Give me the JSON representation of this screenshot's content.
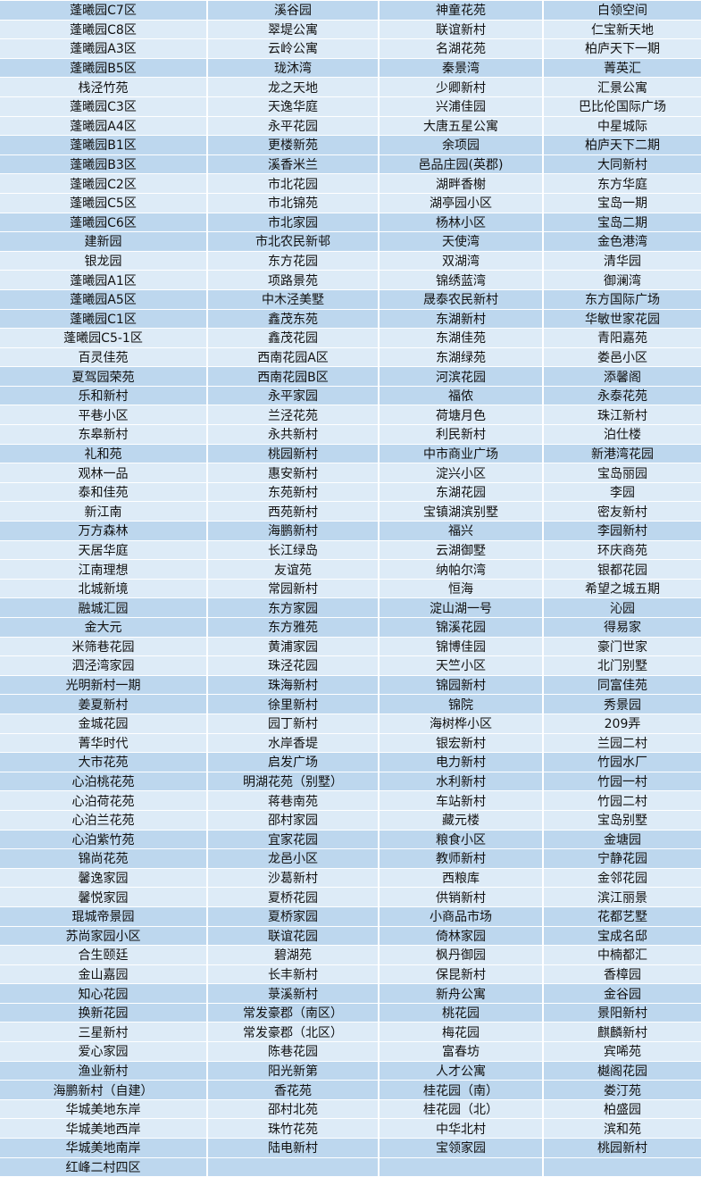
{
  "colors": {
    "dark_row": "#bdd7ee",
    "light_row": "#ddebf7"
  },
  "rows": [
    {
      "shade": "d",
      "cells": [
        "蓬曦园C7区",
        "溪谷园",
        "神童花苑",
        "白领空间"
      ]
    },
    {
      "shade": "l",
      "cells": [
        "蓬曦园C8区",
        "翠堤公寓",
        "联谊新村",
        "仁宝新天地"
      ]
    },
    {
      "shade": "l",
      "cells": [
        "蓬曦园A3区",
        "云岭公寓",
        "名湖花苑",
        "柏庐天下一期"
      ]
    },
    {
      "shade": "d",
      "cells": [
        "蓬曦园B5区",
        "珑沐湾",
        "秦景湾",
        "菁英汇"
      ]
    },
    {
      "shade": "l",
      "cells": [
        "栈泾竹苑",
        "龙之天地",
        "少卿新村",
        "汇景公寓"
      ]
    },
    {
      "shade": "l",
      "cells": [
        "蓬曦园C3区",
        "天逸华庭",
        "兴浦佳园",
        "巴比伦国际广场"
      ]
    },
    {
      "shade": "l",
      "cells": [
        "蓬曦园A4区",
        "永平花园",
        "大唐五星公寓",
        "中星城际"
      ]
    },
    {
      "shade": "d",
      "cells": [
        "蓬曦园B1区",
        "更楼新苑",
        "余项园",
        "柏庐天下二期"
      ]
    },
    {
      "shade": "d",
      "cells": [
        "蓬曦园B3区",
        "溪香米兰",
        "邑品庄园(英郡)",
        "大同新村"
      ]
    },
    {
      "shade": "l",
      "cells": [
        "蓬曦园C2区",
        "市北花园",
        "湖畔香榭",
        "东方华庭"
      ]
    },
    {
      "shade": "l",
      "cells": [
        "蓬曦园C5区",
        "市北锦苑",
        "湖亭园小区",
        "宝岛一期"
      ]
    },
    {
      "shade": "d",
      "cells": [
        "蓬曦园C6区",
        "市北家园",
        "杨林小区",
        "宝岛二期"
      ]
    },
    {
      "shade": "d",
      "cells": [
        "建新园",
        "市北农民新邨",
        "天使湾",
        "金色港湾"
      ]
    },
    {
      "shade": "l",
      "cells": [
        "银龙园",
        "东方花园",
        "双湖湾",
        "清华园"
      ]
    },
    {
      "shade": "l",
      "cells": [
        "蓬曦园A1区",
        "项路景苑",
        "锦绣蓝湾",
        "御澜湾"
      ]
    },
    {
      "shade": "d",
      "cells": [
        "蓬曦园A5区",
        "中木泾美墅",
        "晟泰农民新村",
        "东方国际广场"
      ]
    },
    {
      "shade": "d",
      "cells": [
        "蓬曦园C1区",
        "鑫茂东苑",
        "东湖新村",
        "华敏世家花园"
      ]
    },
    {
      "shade": "l",
      "cells": [
        "蓬曦园C5-1区",
        "鑫茂花园",
        "东湖佳苑",
        "青阳嘉苑"
      ]
    },
    {
      "shade": "l",
      "cells": [
        "百灵佳苑",
        "西南花园A区",
        "东湖绿苑",
        "娄邑小区"
      ]
    },
    {
      "shade": "d",
      "cells": [
        "夏驾园荣苑",
        "西南花园B区",
        "河滨花园",
        "添馨阁"
      ]
    },
    {
      "shade": "d",
      "cells": [
        "乐和新村",
        "永平家园",
        "福侬",
        "永泰花苑"
      ]
    },
    {
      "shade": "l",
      "cells": [
        "平巷小区",
        "兰泾花苑",
        "荷塘月色",
        "珠江新村"
      ]
    },
    {
      "shade": "l",
      "cells": [
        "东皋新村",
        "永共新村",
        "利民新村",
        "泊仕楼"
      ]
    },
    {
      "shade": "d",
      "cells": [
        "礼和苑",
        "桃园新村",
        "中市商业广场",
        "新港湾花园"
      ]
    },
    {
      "shade": "l",
      "cells": [
        "观林一品",
        "惠安新村",
        "淀兴小区",
        "宝岛丽园"
      ]
    },
    {
      "shade": "l",
      "cells": [
        "泰和佳苑",
        "东苑新村",
        "东湖花园",
        "李园"
      ]
    },
    {
      "shade": "l",
      "cells": [
        "新江南",
        "西苑新村",
        "宝镇湖滨别墅",
        "密友新村"
      ]
    },
    {
      "shade": "d",
      "cells": [
        "万方森林",
        "海鹏新村",
        "福兴",
        "李园新村"
      ]
    },
    {
      "shade": "l",
      "cells": [
        "天居华庭",
        "长江绿岛",
        "云湖御墅",
        "环庆商苑"
      ]
    },
    {
      "shade": "l",
      "cells": [
        "江南理想",
        "友谊苑",
        "纳帕尔湾",
        "银都花园"
      ]
    },
    {
      "shade": "l",
      "cells": [
        "北城新境",
        "常园新村",
        "恒海",
        "希望之城五期"
      ]
    },
    {
      "shade": "d",
      "cells": [
        "融城汇园",
        "东方家园",
        "淀山湖一号",
        "沁园"
      ]
    },
    {
      "shade": "d",
      "cells": [
        "金大元",
        "东方雅苑",
        "锦溪花园",
        "得易家"
      ]
    },
    {
      "shade": "l",
      "cells": [
        "米筛巷花园",
        "黄浦家园",
        "锦博佳园",
        "豪门世家"
      ]
    },
    {
      "shade": "l",
      "cells": [
        "泗泾湾家园",
        "珠泾花园",
        "天竺小区",
        "北门别墅"
      ]
    },
    {
      "shade": "d",
      "cells": [
        "光明新村一期",
        "珠海新村",
        "锦园新村",
        "同富佳苑"
      ]
    },
    {
      "shade": "d",
      "cells": [
        "姜夏新村",
        "徐里新村",
        "锦院",
        "秀景园"
      ]
    },
    {
      "shade": "l",
      "cells": [
        "金城花园",
        "园丁新村",
        "海树桦小区",
        "209弄"
      ]
    },
    {
      "shade": "l",
      "cells": [
        "菁华时代",
        "水岸香堤",
        "银宏新村",
        "兰园二村"
      ]
    },
    {
      "shade": "d",
      "cells": [
        "大市花苑",
        "启发广场",
        "电力新村",
        "竹园水厂"
      ]
    },
    {
      "shade": "d",
      "cells": [
        "心泊桃花苑",
        "明湖花苑（别墅）",
        "水利新村",
        "竹园一村"
      ]
    },
    {
      "shade": "l",
      "cells": [
        "心泊荷花苑",
        "蒋巷南苑",
        "车站新村",
        "竹园二村"
      ]
    },
    {
      "shade": "l",
      "cells": [
        "心泊兰花苑",
        "邵村家园",
        "藏元楼",
        "宝岛别墅"
      ]
    },
    {
      "shade": "d",
      "cells": [
        "心泊紫竹苑",
        "宜家花园",
        "粮食小区",
        "金塘园"
      ]
    },
    {
      "shade": "d",
      "cells": [
        "锦尚花苑",
        "龙邑小区",
        "教师新村",
        "宁静花园"
      ]
    },
    {
      "shade": "l",
      "cells": [
        "馨逸家园",
        "沙葛新村",
        "西粮库",
        "金邻花园"
      ]
    },
    {
      "shade": "l",
      "cells": [
        "馨悦家园",
        "夏桥花园",
        "供销新村",
        "滨江丽景"
      ]
    },
    {
      "shade": "d",
      "cells": [
        "琨城帝景园",
        "夏桥家园",
        "小商品市场",
        "花都艺墅"
      ]
    },
    {
      "shade": "d",
      "cells": [
        "苏尚家园小区",
        "联谊花园",
        "倚林家园",
        "宝成名邸"
      ]
    },
    {
      "shade": "l",
      "cells": [
        "合生颐廷",
        "碧湖苑",
        "枫丹御园",
        "中楠都汇"
      ]
    },
    {
      "shade": "l",
      "cells": [
        "金山嘉园",
        "长丰新村",
        "保昆新村",
        "香樟园"
      ]
    },
    {
      "shade": "d",
      "cells": [
        "知心花园",
        "菉溪新村",
        "新舟公寓",
        "金谷园"
      ]
    },
    {
      "shade": "d",
      "cells": [
        "换新花园",
        "常发豪郡（南区）",
        "桃花园",
        "景阳新村"
      ]
    },
    {
      "shade": "l",
      "cells": [
        "三星新村",
        "常发豪郡（北区）",
        "梅花园",
        "麒麟新村"
      ]
    },
    {
      "shade": "l",
      "cells": [
        "爱心家园",
        "陈巷花园",
        "富春坊",
        "宾唏苑"
      ]
    },
    {
      "shade": "d",
      "cells": [
        "渔业新村",
        "阳光新第",
        "人才公寓",
        "樾阁花园"
      ]
    },
    {
      "shade": "d",
      "cells": [
        "海鹏新村（自建）",
        "香花苑",
        "桂花园（南）",
        "娄汀苑"
      ]
    },
    {
      "shade": "l",
      "cells": [
        "华城美地东岸",
        "邵村北苑",
        "桂花园（北）",
        "柏盛园"
      ]
    },
    {
      "shade": "l",
      "cells": [
        "华城美地西岸",
        "珠竹花苑",
        "中华北村",
        "滨和苑"
      ]
    },
    {
      "shade": "d",
      "cells": [
        "华城美地南岸",
        "陆电新村",
        "宝领家园",
        "桃园新村"
      ]
    },
    {
      "shade": "d",
      "cells": [
        "红峰二村四区",
        "",
        "",
        ""
      ]
    }
  ]
}
